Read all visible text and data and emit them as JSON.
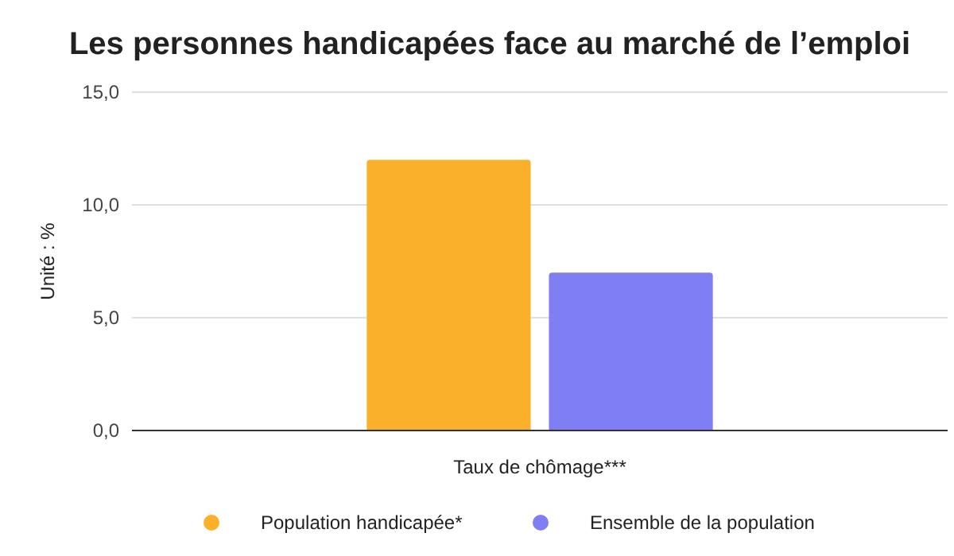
{
  "chart_data": {
    "type": "bar",
    "title": "Les personnes handicapées face au marché de l’emploi",
    "ylabel": "Unité : %",
    "categories": [
      "Taux de chômage***"
    ],
    "series": [
      {
        "name": "Population handicapée*",
        "color": "#fbb02b",
        "values": [
          12.0
        ]
      },
      {
        "name": "Ensemble de la population",
        "color": "#7f7ff3",
        "values": [
          7.0
        ]
      }
    ],
    "ylim": [
      0,
      15
    ],
    "yticks": [
      {
        "value": 0,
        "label": "0,0"
      },
      {
        "value": 5,
        "label": "5,0"
      },
      {
        "value": 10,
        "label": "10,0"
      },
      {
        "value": 15,
        "label": "15,0"
      }
    ],
    "grid": "y",
    "legend": "bottom"
  }
}
